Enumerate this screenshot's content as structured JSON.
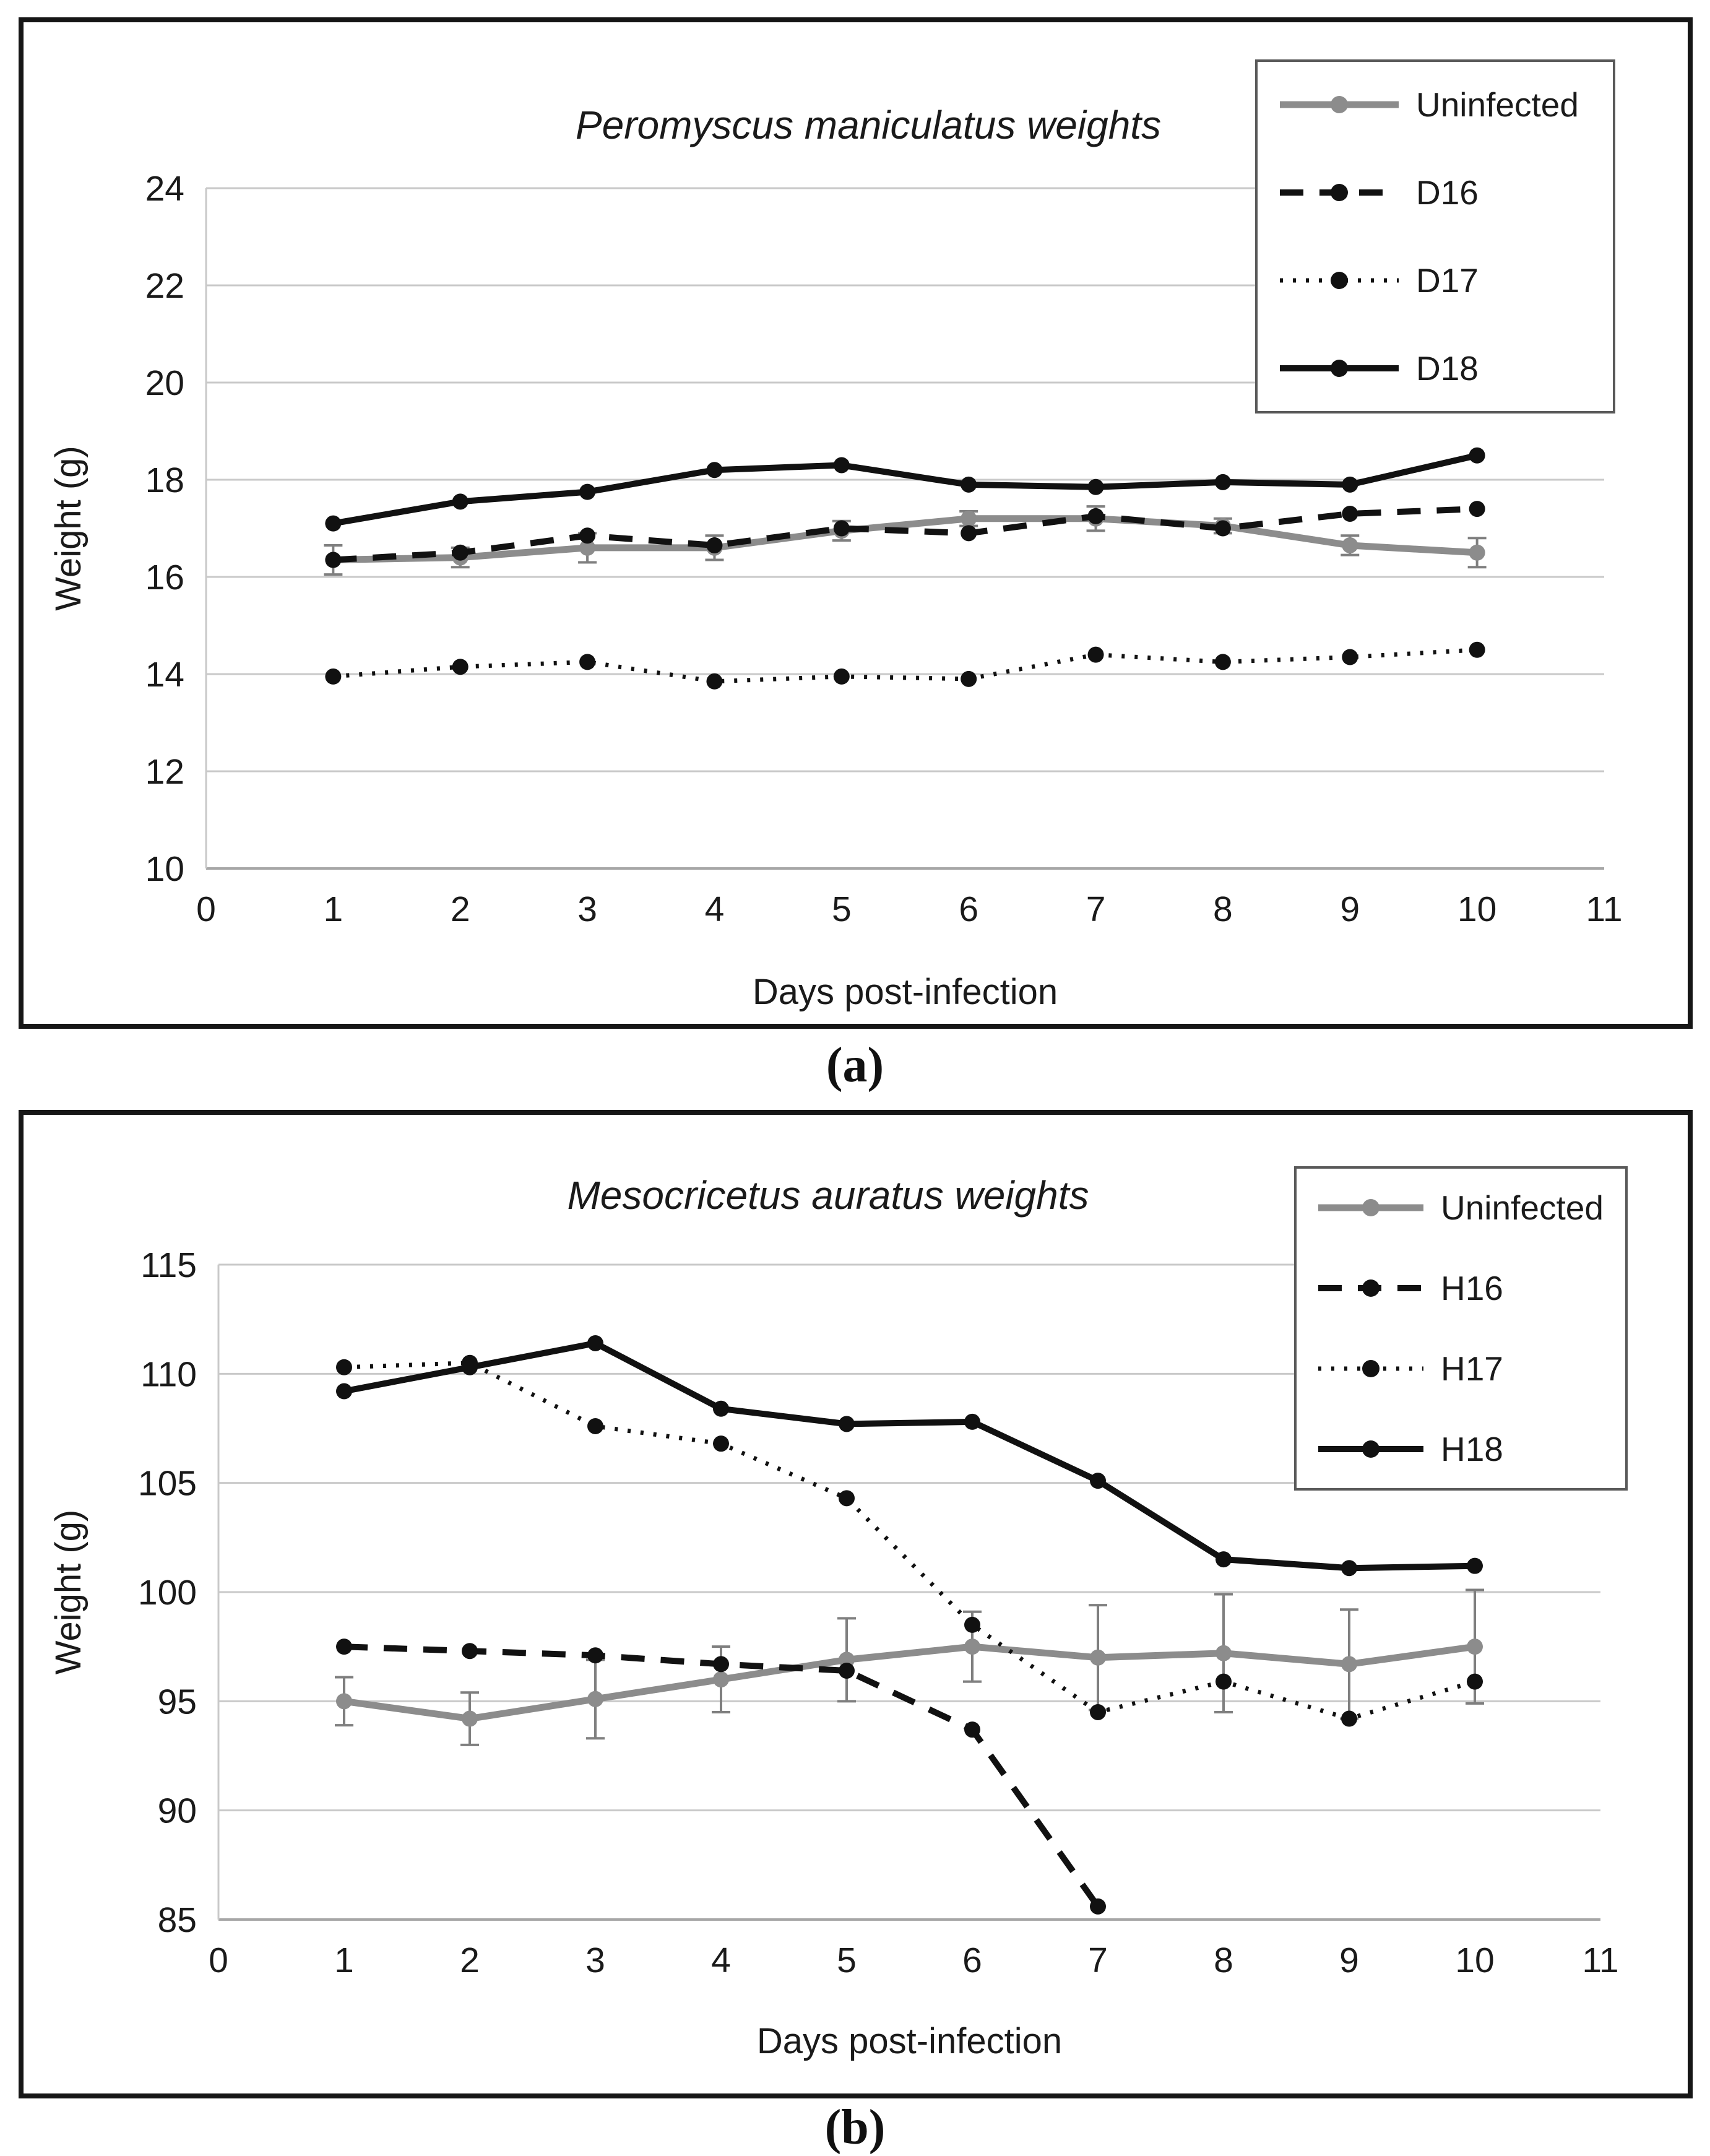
{
  "figure": {
    "caption_a": "(a)",
    "caption_b": "(b)"
  },
  "chart_data": [
    {
      "type": "line",
      "panel": "a",
      "title_italic": "Peromyscus maniculatus",
      "title_rest": " weights",
      "xlabel": "Days post-infection",
      "ylabel": "Weight (g)",
      "xlim": [
        0,
        11
      ],
      "ylim": [
        10,
        24
      ],
      "xticks": [
        0,
        1,
        2,
        3,
        4,
        5,
        6,
        7,
        8,
        9,
        10,
        11
      ],
      "yticks": [
        10,
        12,
        14,
        16,
        18,
        20,
        22,
        24
      ],
      "grid": "horizontal",
      "legend_position": "top-right",
      "x": [
        1,
        2,
        3,
        4,
        5,
        6,
        7,
        8,
        9,
        10
      ],
      "series": [
        {
          "name": "Uninfected",
          "color": "#8c8c8c",
          "line_style": "solid",
          "marker": "circle",
          "values": [
            16.35,
            16.4,
            16.6,
            16.6,
            16.95,
            17.2,
            17.2,
            17.05,
            16.65,
            16.5
          ],
          "errors": [
            0.3,
            0.2,
            0.3,
            0.25,
            0.2,
            0.15,
            0.25,
            0.15,
            0.2,
            0.3
          ]
        },
        {
          "name": "D16",
          "color": "#111111",
          "line_style": "dashed",
          "marker": "circle",
          "values": [
            16.35,
            16.5,
            16.85,
            16.65,
            17.0,
            16.9,
            17.25,
            17.0,
            17.3,
            17.4
          ],
          "errors": null
        },
        {
          "name": "D17",
          "color": "#111111",
          "line_style": "dotted",
          "marker": "circle",
          "values": [
            13.95,
            14.15,
            14.25,
            13.85,
            13.95,
            13.9,
            14.4,
            14.25,
            14.35,
            14.5
          ],
          "errors": null
        },
        {
          "name": "D18",
          "color": "#111111",
          "line_style": "solid",
          "marker": "circle",
          "values": [
            17.1,
            17.55,
            17.75,
            18.2,
            18.3,
            17.9,
            17.85,
            17.95,
            17.9,
            18.5
          ],
          "errors": null
        }
      ]
    },
    {
      "type": "line",
      "panel": "b",
      "title_italic": "Mesocricetus auratus",
      "title_rest": " weights",
      "xlabel": "Days post-infection",
      "ylabel": "Weight (g)",
      "xlim": [
        0,
        11
      ],
      "ylim": [
        85,
        115
      ],
      "xticks": [
        0,
        1,
        2,
        3,
        4,
        5,
        6,
        7,
        8,
        9,
        10,
        11
      ],
      "yticks": [
        85,
        90,
        95,
        100,
        105,
        110,
        115
      ],
      "grid": "horizontal",
      "legend_position": "top-right",
      "x": [
        1,
        2,
        3,
        4,
        5,
        6,
        7,
        8,
        9,
        10
      ],
      "series": [
        {
          "name": "Uninfected",
          "color": "#8c8c8c",
          "line_style": "solid",
          "marker": "circle",
          "values": [
            95.0,
            94.2,
            95.1,
            96.0,
            96.9,
            97.5,
            97.0,
            97.2,
            96.7,
            97.5
          ],
          "errors": [
            1.1,
            1.2,
            1.8,
            1.5,
            1.9,
            1.6,
            2.4,
            2.7,
            2.5,
            2.6
          ]
        },
        {
          "name": "H16",
          "color": "#111111",
          "line_style": "dashed",
          "marker": "circle",
          "values": [
            97.5,
            97.3,
            97.1,
            96.7,
            96.4,
            93.7,
            85.6,
            null,
            null,
            null
          ],
          "errors": null
        },
        {
          "name": "H17",
          "color": "#111111",
          "line_style": "dotted",
          "marker": "circle",
          "values": [
            110.3,
            110.5,
            107.6,
            106.8,
            104.3,
            98.5,
            94.5,
            95.9,
            94.2,
            95.9
          ],
          "errors": null
        },
        {
          "name": "H18",
          "color": "#111111",
          "line_style": "solid",
          "marker": "circle",
          "values": [
            109.2,
            110.3,
            111.4,
            108.4,
            107.7,
            107.8,
            105.1,
            101.5,
            101.1,
            101.2
          ],
          "errors": null
        }
      ]
    }
  ]
}
